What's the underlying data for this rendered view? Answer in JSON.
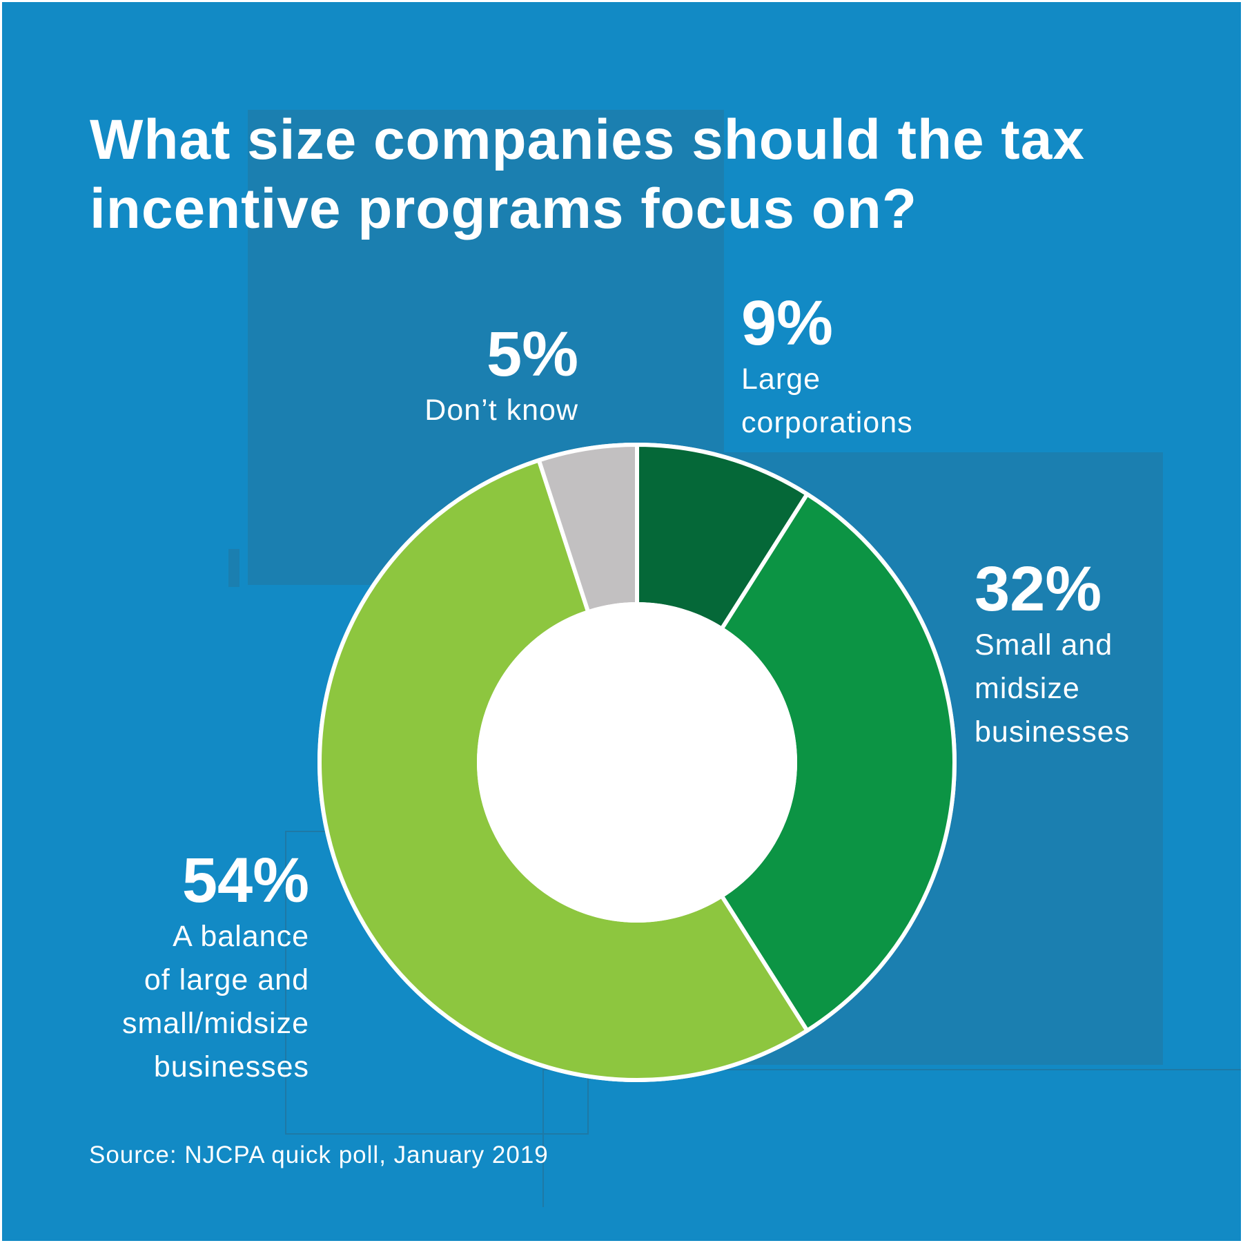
{
  "title": "What size companies should the tax incentive programs focus on?",
  "source": "Source: NJCPA quick poll, January 2019",
  "colors": {
    "background": "#128ac5",
    "panel": "#1b7fb0",
    "large_corporations": "#056838",
    "small_midsize": "#0c9444",
    "balance": "#8dc63f",
    "dont_know": "#c2c0c1",
    "separator": "#ffffff"
  },
  "chart_data": {
    "type": "pie",
    "variant": "donut",
    "title": "What size companies should the tax incentive programs focus on?",
    "unit": "%",
    "slices": [
      {
        "label": "Large corporations",
        "value": 9,
        "display": "9%"
      },
      {
        "label": "Small and midsize businesses",
        "value": 32,
        "display": "32%"
      },
      {
        "label": "A balance of large and small/midsize businesses",
        "value": 54,
        "display": "54%"
      },
      {
        "label": "Don’t know",
        "value": 5,
        "display": "5%"
      }
    ],
    "labels": {
      "large_corporations": {
        "pct": "9%",
        "desc": "Large\ncorporations"
      },
      "small_midsize": {
        "pct": "32%",
        "desc": "Small and\nmidsize\nbusinesses"
      },
      "balance": {
        "pct": "54%",
        "desc": "A balance\nof large and\nsmall/midsize\nbusinesses"
      },
      "dont_know": {
        "pct": "5%",
        "desc": "Don’t know"
      }
    }
  }
}
